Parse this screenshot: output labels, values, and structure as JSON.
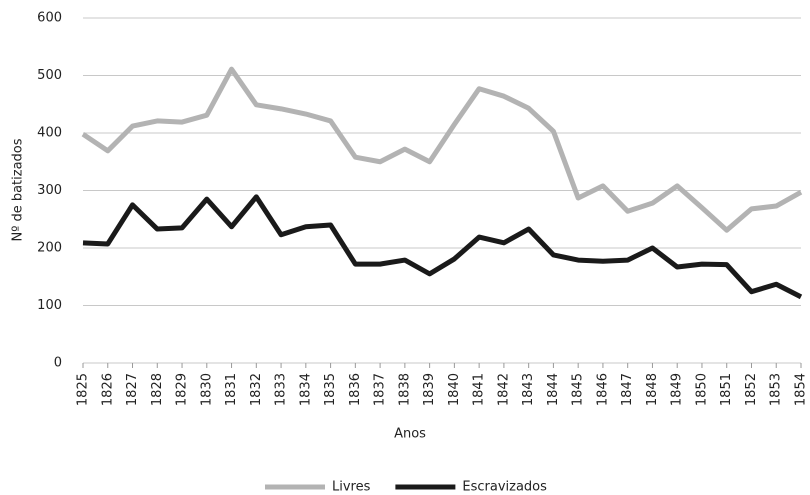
{
  "chart_data": {
    "type": "line",
    "x_label": "Anos",
    "y_label": "Nº de batizados",
    "categories": [
      "1825",
      "1826",
      "1827",
      "1828",
      "1829",
      "1830",
      "1831",
      "1832",
      "1833",
      "1834",
      "1835",
      "1836",
      "1837",
      "1838",
      "1839",
      "1840",
      "1841",
      "1842",
      "1843",
      "1844",
      "1845",
      "1846",
      "1847",
      "1848",
      "1849",
      "1850",
      "1851",
      "1852",
      "1853",
      "1854"
    ],
    "series": [
      {
        "name": "Livres",
        "color": "#b3b3b3",
        "values": [
          398,
          369,
          412,
          421,
          419,
          431,
          511,
          449,
          442,
          433,
          421,
          358,
          350,
          372,
          350,
          415,
          477,
          464,
          443,
          403,
          287,
          308,
          264,
          278,
          308,
          270,
          231,
          268,
          273,
          297
        ]
      },
      {
        "name": "Escravizados",
        "color": "#1a1a1a",
        "values": [
          209,
          207,
          275,
          233,
          235,
          285,
          237,
          289,
          223,
          237,
          240,
          172,
          172,
          179,
          155,
          181,
          219,
          209,
          233,
          188,
          179,
          177,
          179,
          200,
          167,
          172,
          171,
          124,
          137,
          115
        ]
      }
    ],
    "ylim": [
      0,
      600
    ],
    "yticks": [
      0,
      100,
      200,
      300,
      400,
      500,
      600
    ],
    "grid": true,
    "legend": "bottom"
  }
}
